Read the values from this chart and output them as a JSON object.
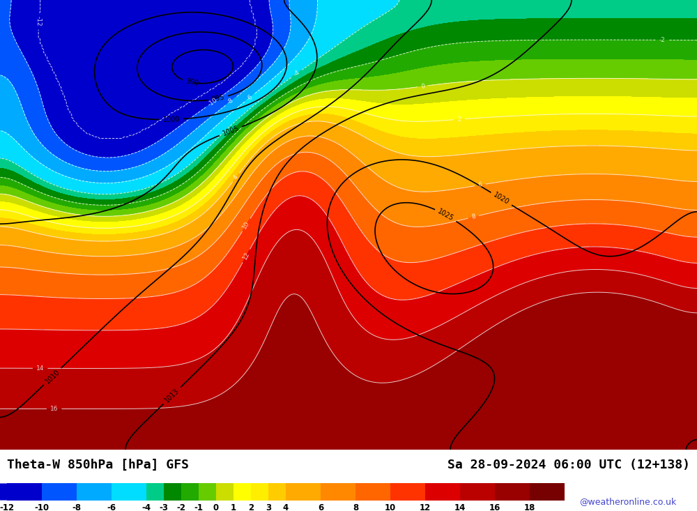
{
  "title_left": "Theta-W 850hPa [hPa] GFS",
  "title_right": "Sa 28-09-2024 06:00 UTC (12+138)",
  "colorbar_levels": [
    -12,
    -10,
    -8,
    -6,
    -4,
    -3,
    -2,
    -1,
    0,
    1,
    2,
    3,
    4,
    6,
    8,
    10,
    12,
    14,
    16,
    18
  ],
  "colorbar_colors": [
    "#0000cd",
    "#0055ff",
    "#00aaff",
    "#00ddff",
    "#00cc88",
    "#008800",
    "#22aa00",
    "#66cc00",
    "#ccdd00",
    "#ffff00",
    "#ffee00",
    "#ffcc00",
    "#ffaa00",
    "#ff8800",
    "#ff6600",
    "#ff3300",
    "#dd0000",
    "#bb0000",
    "#990000",
    "#770000"
  ],
  "background_color": "#ffffff",
  "map_bg": "#cc0000",
  "credit": "@weatheronline.co.uk",
  "fig_width": 10.0,
  "fig_height": 7.33
}
